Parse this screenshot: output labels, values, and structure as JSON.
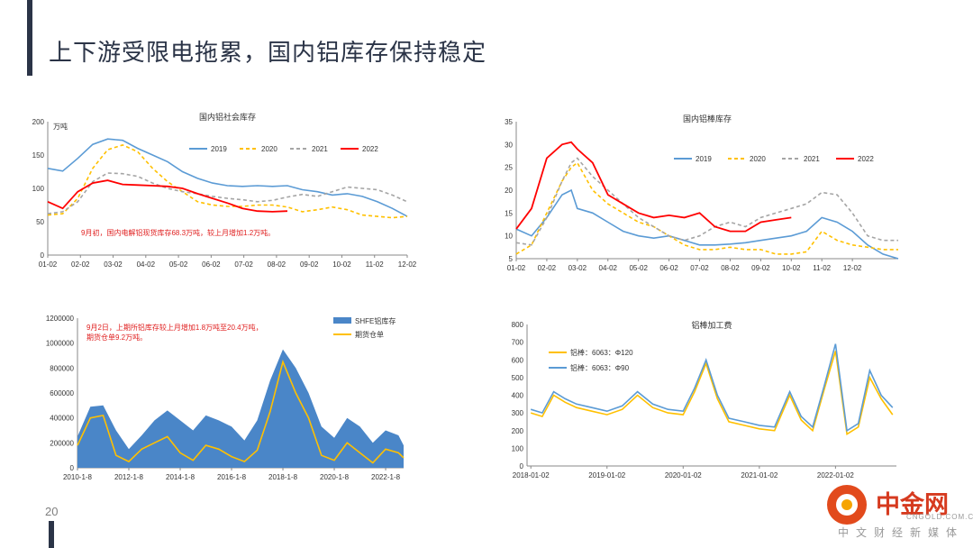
{
  "slide": {
    "title": "上下游受限电拖累，国内铝库存保持稳定",
    "page_number": "20",
    "logo": {
      "name": "中金网",
      "url": "CNGOLD.COM.CN",
      "slogan": "中文财经新媒体"
    }
  },
  "chart_data": [
    {
      "type": "line",
      "title": "国内铝社会库存",
      "ylabel": "万吨",
      "ylim": [
        0,
        200
      ],
      "yticks": [
        0,
        50,
        100,
        150,
        200
      ],
      "xticks": [
        "01-02",
        "02-02",
        "03-02",
        "04-02",
        "05-02",
        "06-02",
        "07-02",
        "08-02",
        "09-02",
        "10-02",
        "11-02",
        "12-02"
      ],
      "x": [
        0,
        0.5,
        1,
        1.5,
        2,
        2.5,
        3,
        3.5,
        4,
        4.5,
        5,
        5.5,
        6,
        6.5,
        7,
        7.5,
        8,
        8.5,
        9,
        9.5,
        10,
        10.5,
        11,
        11.5,
        12
      ],
      "series": [
        {
          "name": "2019",
          "color": "#5b9bd5",
          "dash": "solid",
          "values": [
            130,
            126,
            145,
            166,
            174,
            172,
            160,
            150,
            140,
            125,
            115,
            108,
            104,
            103,
            104,
            103,
            104,
            98,
            95,
            90,
            92,
            88,
            80,
            70,
            58
          ]
        },
        {
          "name": "2020",
          "color": "#ffc000",
          "dash": "dashed",
          "values": [
            60,
            62,
            85,
            130,
            158,
            165,
            155,
            130,
            110,
            95,
            80,
            75,
            73,
            73,
            75,
            75,
            72,
            65,
            68,
            72,
            68,
            60,
            58,
            56,
            58
          ]
        },
        {
          "name": "2021",
          "color": "#a5a5a5",
          "dash": "dashed",
          "values": [
            62,
            65,
            80,
            110,
            123,
            122,
            118,
            108,
            100,
            95,
            92,
            88,
            85,
            83,
            80,
            82,
            87,
            91,
            88,
            95,
            102,
            100,
            98,
            90,
            80
          ]
        },
        {
          "name": "2022",
          "color": "#ff0000",
          "dash": "solid",
          "values": [
            80,
            70,
            95,
            108,
            112,
            106,
            105,
            104,
            103,
            100,
            92,
            85,
            78,
            70,
            66,
            65,
            66,
            null,
            null,
            null,
            null,
            null,
            null,
            null,
            null
          ]
        }
      ],
      "annotation": "9月初，国内电解铝现货库存68.3万吨，较上月增加1.2万吨。"
    },
    {
      "type": "line",
      "title": "国内铝棒库存",
      "ylim": [
        5,
        35
      ],
      "yticks": [
        5,
        10,
        15,
        20,
        25,
        30,
        35
      ],
      "xticks": [
        "01-02",
        "02-02",
        "03-02",
        "04-02",
        "05-02",
        "06-02",
        "07-02",
        "08-02",
        "09-02",
        "10-02",
        "11-02",
        "12-02"
      ],
      "x": [
        0,
        0.5,
        1,
        1.5,
        1.8,
        2,
        2.5,
        3,
        3.5,
        4,
        4.5,
        5,
        5.5,
        6,
        6.5,
        7,
        7.5,
        8,
        8.5,
        9,
        9.5,
        10,
        10.5,
        11,
        11.5,
        12,
        12.5
      ],
      "series": [
        {
          "name": "2019",
          "color": "#5b9bd5",
          "dash": "solid",
          "values": [
            11.5,
            10,
            14,
            19,
            20,
            16,
            15,
            13,
            11,
            10,
            9.5,
            10,
            9,
            8,
            8,
            8.2,
            8.5,
            9,
            9.5,
            10,
            11,
            14,
            13,
            11,
            8,
            6,
            5
          ]
        },
        {
          "name": "2020",
          "color": "#ffc000",
          "dash": "dashed",
          "values": [
            6,
            8,
            15,
            22,
            25,
            26,
            20,
            17,
            15,
            13,
            12,
            10,
            8,
            7,
            7,
            7.5,
            7,
            7,
            6,
            6,
            6.5,
            11,
            9,
            8,
            7.5,
            7,
            7
          ]
        },
        {
          "name": "2021",
          "color": "#a5a5a5",
          "dash": "dashed",
          "values": [
            8.5,
            8,
            14,
            22,
            26,
            27,
            23,
            20,
            17,
            14,
            12,
            10,
            9,
            10,
            12,
            13,
            12,
            14,
            15,
            16,
            17,
            19.5,
            19,
            15,
            10,
            9,
            9
          ]
        },
        {
          "name": "2022",
          "color": "#ff0000",
          "dash": "solid",
          "values": [
            11.5,
            16,
            27,
            30,
            30.5,
            29,
            26,
            19,
            17,
            15,
            14,
            14.5,
            14,
            15,
            12,
            11,
            11,
            13,
            13.5,
            14,
            null,
            null,
            null,
            null,
            null,
            null,
            null
          ]
        }
      ]
    },
    {
      "type": "area",
      "ylim": [
        0,
        1200000
      ],
      "yticks": [
        0,
        200000,
        400000,
        600000,
        800000,
        1000000,
        1200000
      ],
      "xticks": [
        "2010-1-8",
        "2012-1-8",
        "2014-1-8",
        "2016-1-8",
        "2018-1-8",
        "2020-1-8",
        "2022-1-8"
      ],
      "x": [
        2010,
        2010.5,
        2011,
        2011.5,
        2012,
        2012.5,
        2013,
        2013.5,
        2014,
        2014.5,
        2015,
        2015.5,
        2016,
        2016.5,
        2017,
        2017.5,
        2018,
        2018.5,
        2019,
        2019.5,
        2020,
        2020.5,
        2021,
        2021.5,
        2022,
        2022.5,
        2022.7
      ],
      "series": [
        {
          "name": "SHFE铝库存",
          "color": "#4a86c8",
          "values": [
            250000,
            490000,
            500000,
            300000,
            150000,
            260000,
            380000,
            460000,
            380000,
            300000,
            420000,
            380000,
            330000,
            220000,
            380000,
            700000,
            950000,
            800000,
            600000,
            330000,
            240000,
            400000,
            330000,
            200000,
            300000,
            260000,
            180000
          ]
        },
        {
          "name": "期货仓单",
          "color": "#ffc000",
          "values": [
            180000,
            400000,
            420000,
            100000,
            50000,
            150000,
            200000,
            250000,
            120000,
            60000,
            180000,
            150000,
            90000,
            50000,
            140000,
            450000,
            850000,
            600000,
            400000,
            100000,
            60000,
            200000,
            120000,
            40000,
            150000,
            120000,
            80000
          ]
        }
      ],
      "annotation": [
        "9月2日，上期所铝库存较上月增加1.8万吨至20.4万吨，",
        "期货仓单9.2万吨。"
      ]
    },
    {
      "type": "line",
      "title": "铝棒加工费",
      "ylim": [
        0,
        800
      ],
      "yticks": [
        0,
        100,
        200,
        300,
        400,
        500,
        600,
        700,
        800
      ],
      "xticks": [
        "2018-01-02",
        "2019-01-02",
        "2020-01-02",
        "2021-01-02",
        "2022-01-02"
      ],
      "x": [
        2018,
        2018.15,
        2018.3,
        2018.45,
        2018.6,
        2018.8,
        2019,
        2019.2,
        2019.4,
        2019.6,
        2019.8,
        2020,
        2020.15,
        2020.3,
        2020.45,
        2020.6,
        2020.8,
        2021,
        2021.2,
        2021.4,
        2021.55,
        2021.7,
        2021.85,
        2022,
        2022.15,
        2022.3,
        2022.45,
        2022.6,
        2022.75
      ],
      "series": [
        {
          "name": "铝棒：6063：Φ120",
          "color": "#ffc000",
          "values": [
            300,
            280,
            400,
            360,
            330,
            310,
            290,
            320,
            400,
            330,
            300,
            290,
            420,
            580,
            380,
            250,
            230,
            210,
            200,
            400,
            260,
            200,
            430,
            650,
            180,
            220,
            500,
            380,
            290
          ]
        },
        {
          "name": "铝棒：6063：Φ90",
          "color": "#5b9bd5",
          "values": [
            320,
            300,
            420,
            380,
            350,
            330,
            310,
            340,
            420,
            350,
            320,
            310,
            440,
            600,
            400,
            270,
            250,
            230,
            220,
            420,
            280,
            220,
            450,
            690,
            200,
            240,
            540,
            400,
            330
          ]
        }
      ]
    }
  ]
}
